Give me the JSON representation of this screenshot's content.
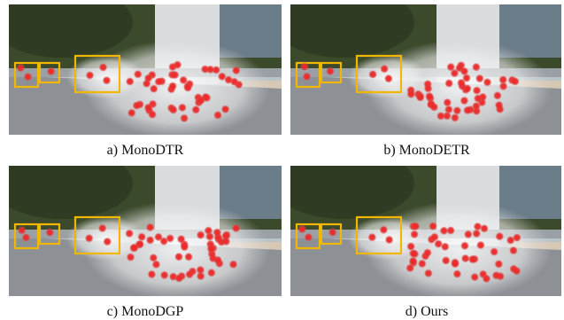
{
  "panels": [
    {
      "caption": "a) MonoDTR"
    },
    {
      "caption": "b) MonoDETR"
    },
    {
      "caption": "c) MonoDGP"
    },
    {
      "caption": "d) Ours"
    }
  ]
}
